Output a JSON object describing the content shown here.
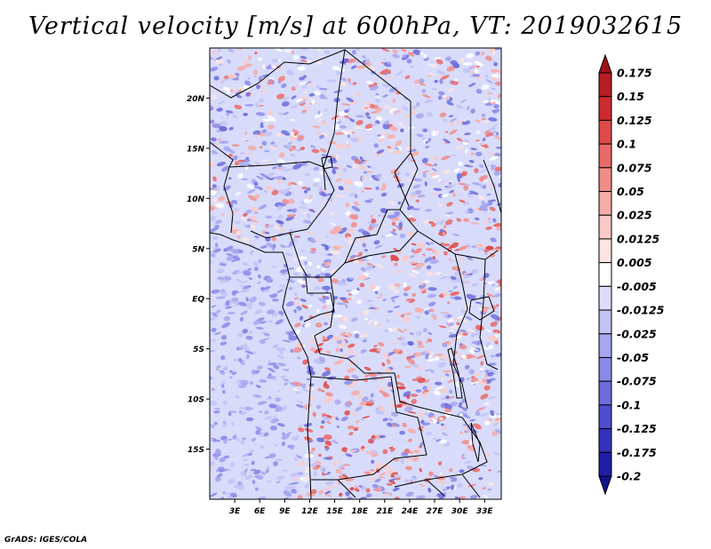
{
  "title": "Vertical velocity [m/s] at 600hPa, VT: 2019032615",
  "footer": "GrADS: IGES/COLA",
  "map": {
    "lat_range": [
      -20,
      25
    ],
    "lon_range": [
      0,
      35
    ],
    "lat_ticks": [
      {
        "label": "20N",
        "value": 20
      },
      {
        "label": "15N",
        "value": 15
      },
      {
        "label": "10N",
        "value": 10
      },
      {
        "label": "5N",
        "value": 5
      },
      {
        "label": "EQ",
        "value": 0
      },
      {
        "label": "5S",
        "value": -5
      },
      {
        "label": "10S",
        "value": -10
      },
      {
        "label": "15S",
        "value": -15
      }
    ],
    "lon_ticks": [
      {
        "label": "3E",
        "value": 3
      },
      {
        "label": "6E",
        "value": 6
      },
      {
        "label": "9E",
        "value": 9
      },
      {
        "label": "12E",
        "value": 12
      },
      {
        "label": "15E",
        "value": 15
      },
      {
        "label": "18E",
        "value": 18
      },
      {
        "label": "21E",
        "value": 21
      },
      {
        "label": "24E",
        "value": 24
      },
      {
        "label": "27E",
        "value": 27
      },
      {
        "label": "30E",
        "value": 30
      },
      {
        "label": "33E",
        "value": 33
      }
    ]
  },
  "colorbar": {
    "levels": [
      "0.175",
      "0.15",
      "0.125",
      "0.1",
      "0.075",
      "0.05",
      "0.025",
      "0.0125",
      "0.005",
      "-0.005",
      "-0.0125",
      "-0.025",
      "-0.05",
      "-0.075",
      "-0.1",
      "-0.125",
      "-0.175",
      "-0.2"
    ],
    "colors": [
      "#a01018",
      "#b81c24",
      "#cc2c30",
      "#de4a4a",
      "#e86a68",
      "#f08c88",
      "#f6aca8",
      "#fbcac6",
      "#fde4e2",
      "#ffffff",
      "#dcdcfa",
      "#c2c2f4",
      "#a6a6ee",
      "#8a8ae8",
      "#6c6cdc",
      "#4e4ed0",
      "#3232bc",
      "#1e1ea6",
      "#12128e"
    ]
  },
  "colors": {
    "ocean": "#bcc0f2",
    "land_bg": "#d8dcfa",
    "border": "#000000"
  }
}
